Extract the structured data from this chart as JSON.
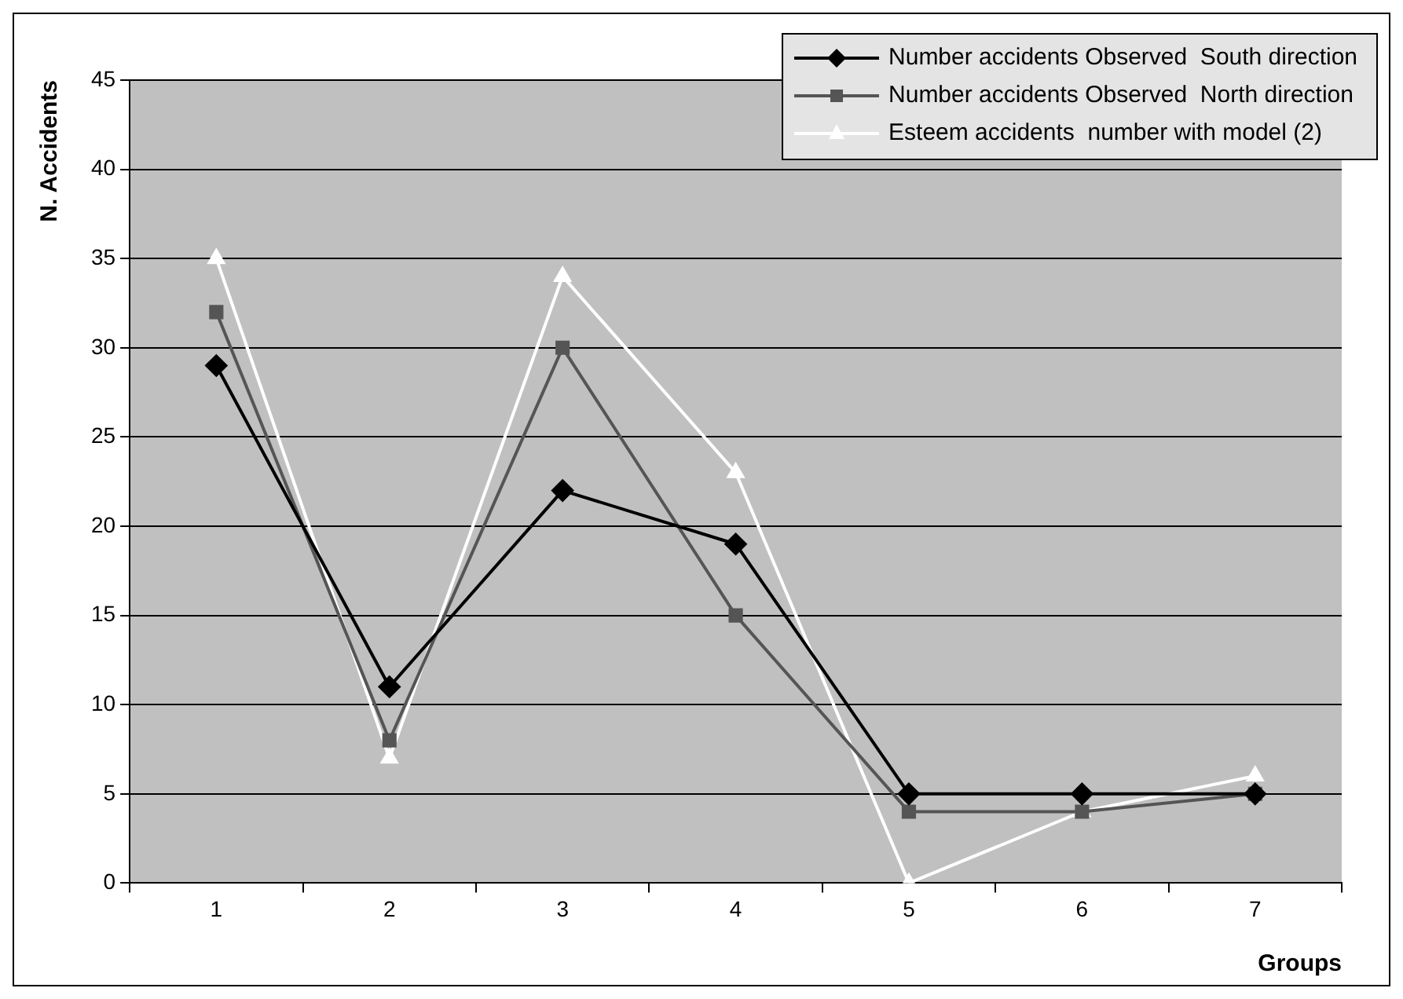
{
  "chart_data": {
    "type": "line",
    "xlabel": "Groups",
    "ylabel": "N. Accidents",
    "categories": [
      "1",
      "2",
      "3",
      "4",
      "5",
      "6",
      "7"
    ],
    "series": [
      {
        "name": "Number accidents Observed  South direction",
        "color": "#000000",
        "marker": "diamond",
        "values": [
          29,
          11,
          22,
          19,
          5,
          5,
          5
        ]
      },
      {
        "name": "Number accidents Observed  North direction",
        "color": "#555555",
        "marker": "square",
        "values": [
          32,
          8,
          30,
          15,
          4,
          4,
          5
        ]
      },
      {
        "name": "Esteem accidents  number with model (2)",
        "color": "#ffffff",
        "marker": "triangle",
        "values": [
          35,
          7,
          34,
          23,
          0,
          4,
          6
        ]
      }
    ],
    "ylim": [
      0,
      45
    ],
    "yticks": [
      0,
      5,
      10,
      15,
      20,
      25,
      30,
      35,
      40,
      45
    ],
    "grid": "y",
    "legend": "top right",
    "line_style": "solid"
  }
}
